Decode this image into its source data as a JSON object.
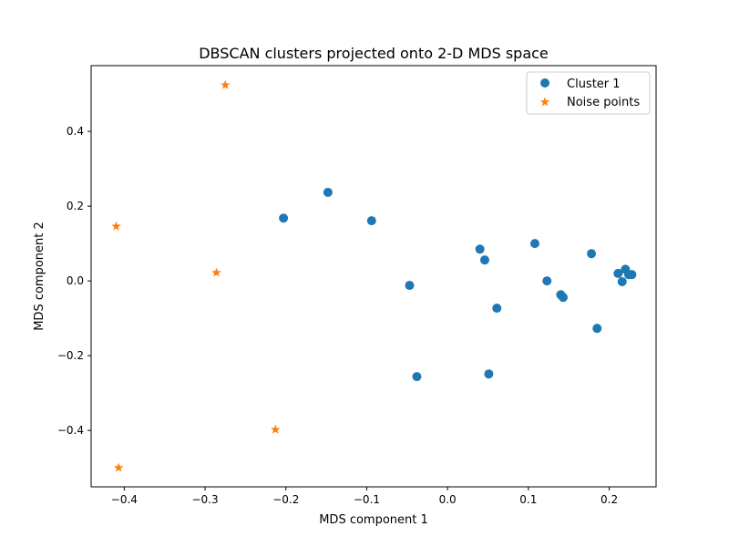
{
  "chart_data": {
    "type": "scatter",
    "title": "DBSCAN clusters projected onto 2-D MDS space",
    "xlabel": "MDS component 1",
    "ylabel": "MDS component 2",
    "xlim": [
      -0.441,
      0.258
    ],
    "ylim": [
      -0.551,
      0.576
    ],
    "xticks": [
      -0.4,
      -0.3,
      -0.2,
      -0.1,
      0.0,
      0.1,
      0.2
    ],
    "xtick_labels": [
      "−0.4",
      "−0.3",
      "−0.2",
      "−0.1",
      "0.0",
      "0.1",
      "0.2"
    ],
    "yticks": [
      -0.4,
      -0.2,
      0.0,
      0.2,
      0.4
    ],
    "ytick_labels": [
      "−0.4",
      "−0.2",
      "0.0",
      "0.2",
      "0.4"
    ],
    "grid": false,
    "legend_position": "top-right",
    "series": [
      {
        "name": "Cluster 1",
        "marker": "circle",
        "color": "#1f77b4",
        "points": [
          [
            -0.203,
            0.168
          ],
          [
            -0.148,
            0.237
          ],
          [
            -0.094,
            0.161
          ],
          [
            -0.047,
            -0.012
          ],
          [
            -0.038,
            -0.256
          ],
          [
            0.04,
            0.085
          ],
          [
            0.046,
            0.056
          ],
          [
            0.051,
            -0.249
          ],
          [
            0.061,
            -0.073
          ],
          [
            0.108,
            0.1
          ],
          [
            0.123,
            0.0
          ],
          [
            0.14,
            -0.037
          ],
          [
            0.143,
            -0.044
          ],
          [
            0.178,
            0.073
          ],
          [
            0.185,
            -0.127
          ],
          [
            0.211,
            0.02
          ],
          [
            0.22,
            0.031
          ],
          [
            0.216,
            -0.002
          ],
          [
            0.224,
            0.017
          ],
          [
            0.228,
            0.017
          ]
        ]
      },
      {
        "name": "Noise points",
        "marker": "star",
        "color": "#ff7f0e",
        "points": [
          [
            -0.275,
            0.524
          ],
          [
            -0.41,
            0.146
          ],
          [
            -0.286,
            0.022
          ],
          [
            -0.213,
            -0.398
          ],
          [
            -0.407,
            -0.5
          ]
        ]
      }
    ]
  }
}
